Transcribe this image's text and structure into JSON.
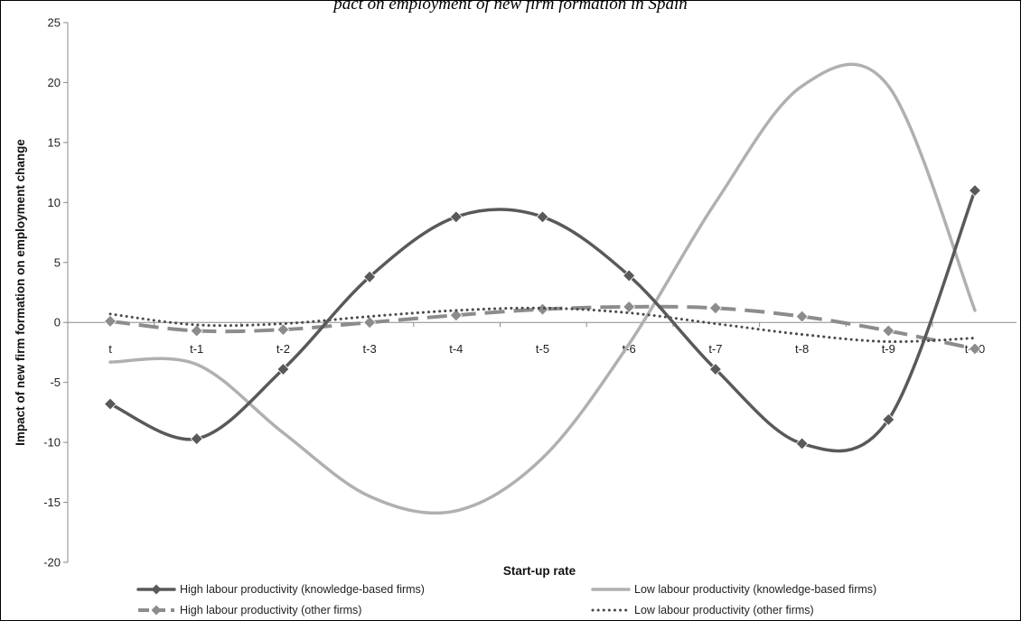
{
  "chart_data": {
    "type": "line",
    "title": "pact on employment of new firm formation in Spain",
    "xlabel": "Start-up rate",
    "ylabel": "Impact of new firm formation on employment change",
    "categories": [
      "t",
      "t-1",
      "t-2",
      "t-3",
      "t-4",
      "t-5",
      "t-6",
      "t-7",
      "t-8",
      "t-9",
      "t-10"
    ],
    "ylim": [
      -20,
      25
    ],
    "yticks": [
      -20,
      -15,
      -10,
      -5,
      0,
      5,
      10,
      15,
      20,
      25
    ],
    "grid": false,
    "legend_position": "bottom",
    "series": [
      {
        "name": "High labour productivity (knowledge-based firms)",
        "values": [
          -6.8,
          -9.7,
          -3.9,
          3.8,
          8.8,
          8.8,
          3.9,
          -3.9,
          -10.1,
          -8.1,
          11.0
        ],
        "color": "#595959",
        "style": "solid",
        "marker": "diamond"
      },
      {
        "name": "Low labour productivity (knowledge-based firms)",
        "values": [
          -3.3,
          -3.5,
          -9.2,
          -14.5,
          -15.7,
          -11.3,
          -1.8,
          10.0,
          19.7,
          19.7,
          1.0
        ],
        "color": "#b0b0b0",
        "style": "solid",
        "marker": "none"
      },
      {
        "name": "High labour productivity (other firms)",
        "values": [
          0.1,
          -0.7,
          -0.6,
          0.0,
          0.6,
          1.1,
          1.3,
          1.2,
          0.5,
          -0.7,
          -2.2
        ],
        "color": "#8c8c8c",
        "style": "dashed",
        "marker": "diamond"
      },
      {
        "name": "Low labour productivity (other firms)",
        "values": [
          0.7,
          -0.2,
          -0.1,
          0.5,
          1.0,
          1.2,
          0.8,
          -0.1,
          -1.0,
          -1.6,
          -1.3
        ],
        "color": "#4a4a4a",
        "style": "dotted",
        "marker": "none"
      }
    ]
  }
}
